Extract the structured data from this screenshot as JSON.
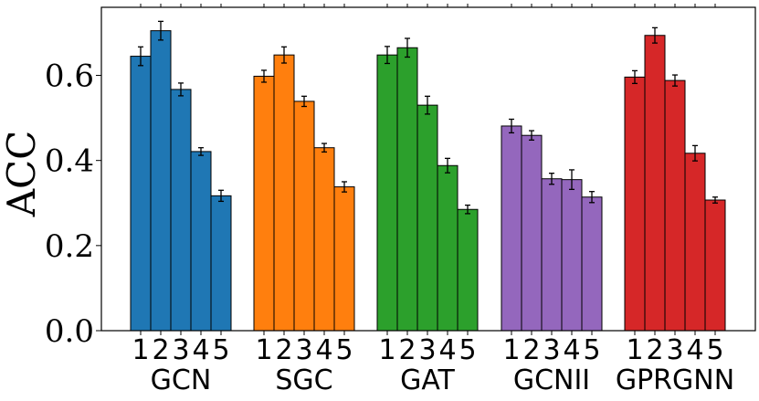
{
  "chart_data": {
    "type": "bar",
    "title": "",
    "xlabel": "",
    "ylabel": "ACC",
    "ylim": [
      0,
      0.76
    ],
    "yticks": [
      "0.0",
      "0.2",
      "0.4",
      "0.6"
    ],
    "ytick_values": [
      0.0,
      0.2,
      0.4,
      0.6
    ],
    "categories": [
      "1",
      "2",
      "3",
      "4",
      "5"
    ],
    "groups": [
      {
        "name": "GCN",
        "color": "#1f77b4",
        "values": [
          0.645,
          0.705,
          0.567,
          0.421,
          0.317
        ],
        "errors": [
          0.022,
          0.022,
          0.015,
          0.009,
          0.013
        ]
      },
      {
        "name": "SGC",
        "color": "#ff7f0e",
        "values": [
          0.598,
          0.648,
          0.539,
          0.43,
          0.338
        ],
        "errors": [
          0.014,
          0.019,
          0.012,
          0.01,
          0.012
        ]
      },
      {
        "name": "GAT",
        "color": "#2ca02c",
        "values": [
          0.648,
          0.665,
          0.53,
          0.388,
          0.285
        ],
        "errors": [
          0.02,
          0.022,
          0.021,
          0.017,
          0.01
        ]
      },
      {
        "name": "GCNII",
        "color": "#9467bd",
        "values": [
          0.481,
          0.459,
          0.357,
          0.355,
          0.314
        ],
        "errors": [
          0.016,
          0.011,
          0.013,
          0.023,
          0.013
        ]
      },
      {
        "name": "GPRGNN",
        "color": "#d62728",
        "values": [
          0.596,
          0.694,
          0.588,
          0.417,
          0.307
        ],
        "errors": [
          0.015,
          0.018,
          0.013,
          0.018,
          0.007
        ]
      }
    ]
  }
}
